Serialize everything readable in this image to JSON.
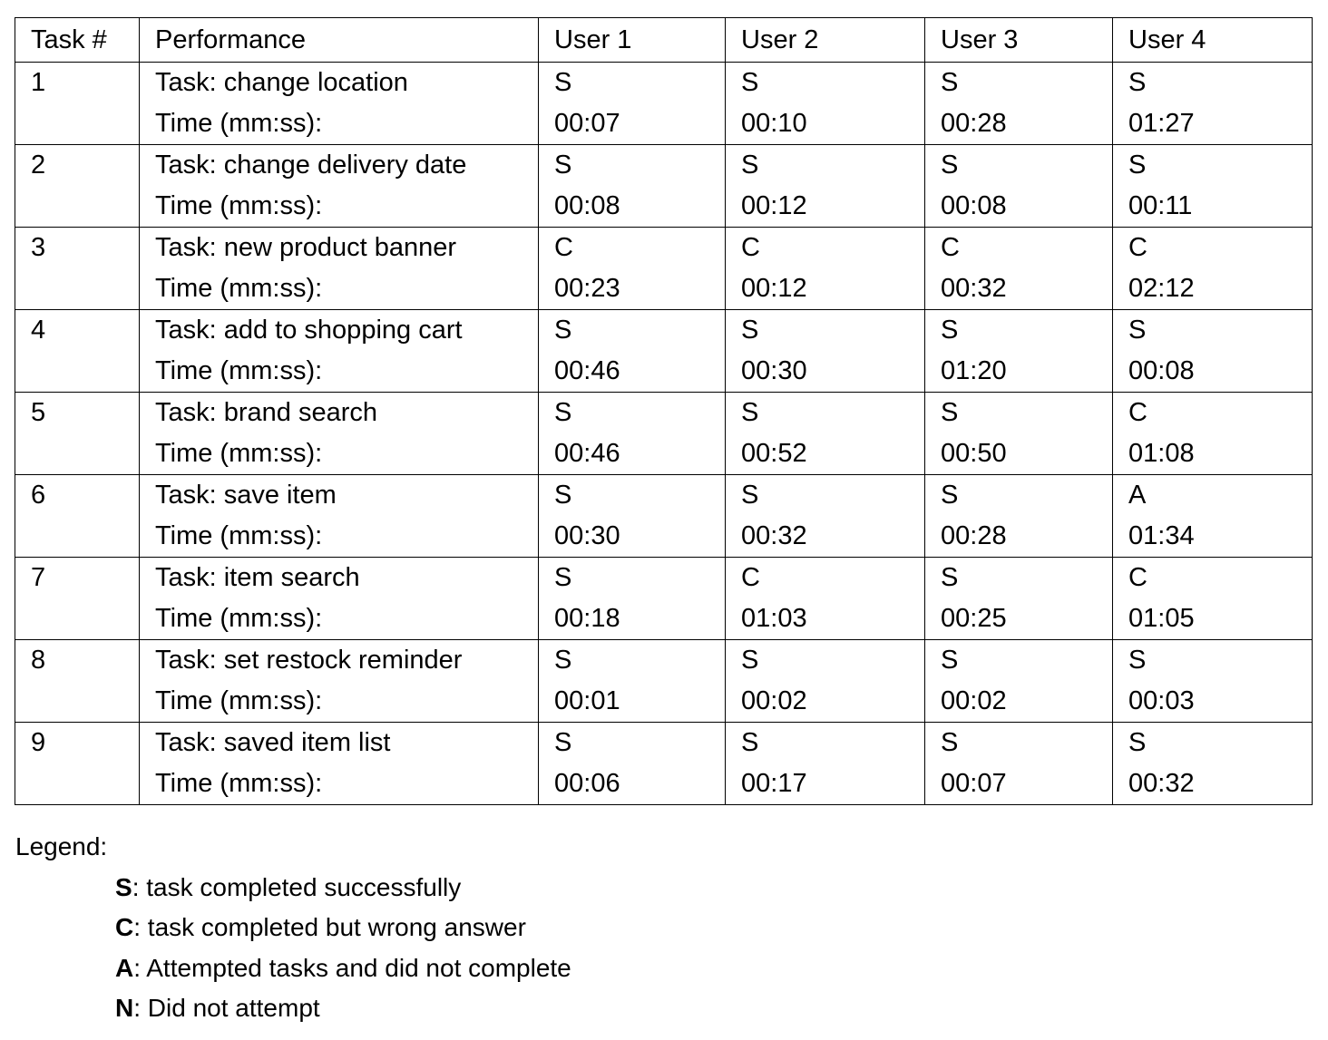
{
  "table": {
    "headers": [
      "Task #",
      "Performance",
      "User 1",
      "User 2",
      "User 3",
      "User 4"
    ],
    "time_label": "Time (mm:ss):",
    "rows": [
      {
        "num": "1",
        "task": "Task: change location",
        "results": [
          [
            "S",
            "00:07"
          ],
          [
            "S",
            "00:10"
          ],
          [
            "S",
            "00:28"
          ],
          [
            "S",
            "01:27"
          ]
        ]
      },
      {
        "num": "2",
        "task": "Task: change delivery date",
        "results": [
          [
            "S",
            "00:08"
          ],
          [
            "S",
            "00:12"
          ],
          [
            "S",
            "00:08"
          ],
          [
            "S",
            "00:11"
          ]
        ]
      },
      {
        "num": "3",
        "task": "Task: new product banner",
        "results": [
          [
            "C",
            "00:23"
          ],
          [
            "C",
            "00:12"
          ],
          [
            "C",
            "00:32"
          ],
          [
            "C",
            "02:12"
          ]
        ]
      },
      {
        "num": "4",
        "task": "Task: add to shopping cart",
        "results": [
          [
            "S",
            "00:46"
          ],
          [
            "S",
            "00:30"
          ],
          [
            "S",
            "01:20"
          ],
          [
            "S",
            "00:08"
          ]
        ]
      },
      {
        "num": "5",
        "task": "Task: brand search",
        "results": [
          [
            "S",
            "00:46"
          ],
          [
            "S",
            "00:52"
          ],
          [
            "S",
            "00:50"
          ],
          [
            "C",
            "01:08"
          ]
        ]
      },
      {
        "num": "6",
        "task": "Task: save item",
        "results": [
          [
            "S",
            "00:30"
          ],
          [
            "S",
            "00:32"
          ],
          [
            "S",
            "00:28"
          ],
          [
            "A",
            "01:34"
          ]
        ]
      },
      {
        "num": "7",
        "task": "Task: item search",
        "results": [
          [
            "S",
            "00:18"
          ],
          [
            "C",
            "01:03"
          ],
          [
            "S",
            "00:25"
          ],
          [
            "C",
            "01:05"
          ]
        ]
      },
      {
        "num": "8",
        "task": "Task: set restock reminder",
        "results": [
          [
            "S",
            "00:01"
          ],
          [
            "S",
            "00:02"
          ],
          [
            "S",
            "00:02"
          ],
          [
            "S",
            "00:03"
          ]
        ]
      },
      {
        "num": "9",
        "task": "Task: saved item list",
        "results": [
          [
            "S",
            "00:06"
          ],
          [
            "S",
            "00:17"
          ],
          [
            "S",
            "00:07"
          ],
          [
            "S",
            "00:32"
          ]
        ]
      }
    ]
  },
  "legend": {
    "title": "Legend:",
    "items": [
      {
        "code": "S",
        "text": ": task completed successfully"
      },
      {
        "code": "C",
        "text": ": task completed but wrong answer"
      },
      {
        "code": "A",
        "text": ": Attempted tasks and did not complete"
      },
      {
        "code": "N",
        "text": ": Did not attempt"
      }
    ]
  }
}
